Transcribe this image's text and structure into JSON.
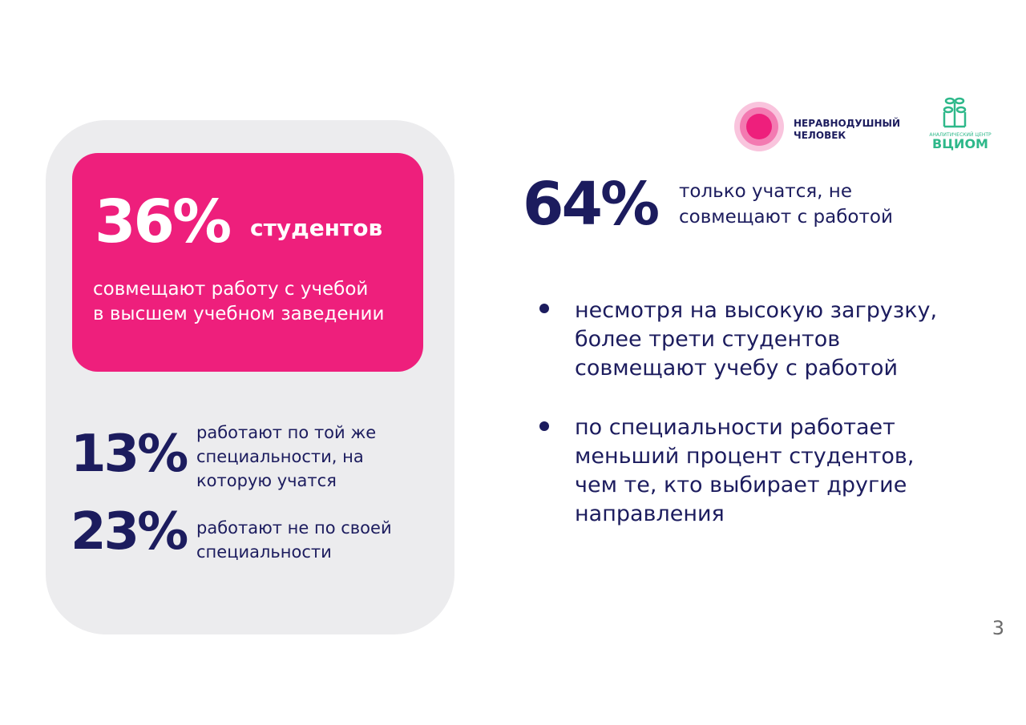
{
  "card": {
    "main_percent": "36%",
    "main_label": "студентов",
    "main_text": [
      "совмещают работу с учебой",
      "в высшем учебном заведении"
    ],
    "stats": [
      {
        "percent": "13%",
        "text": [
          "работают по той же",
          "специальности, на",
          "которую учатся"
        ]
      },
      {
        "percent": "23%",
        "text": [
          "работают не по своей",
          "специальности"
        ]
      }
    ]
  },
  "logos": {
    "partner": [
      "НЕРАВНОДУШНЫЙ",
      "ЧЕЛОВЕК"
    ],
    "vciom_caption": "АНАЛИТИЧЕСКИЙ ЦЕНТР",
    "vciom_name": "ВЦИОМ"
  },
  "headline": {
    "percent": "64%",
    "text": [
      "только учатся, не",
      "совмещают с работой"
    ]
  },
  "bullets": [
    [
      "несмотря на высокую загрузку,",
      "более трети студентов",
      "совмещают учебу с работой"
    ],
    [
      "по специальности работает",
      "меньший процент студентов,",
      "чем те, кто выбирает другие",
      "направления"
    ]
  ],
  "page_number": "3"
}
